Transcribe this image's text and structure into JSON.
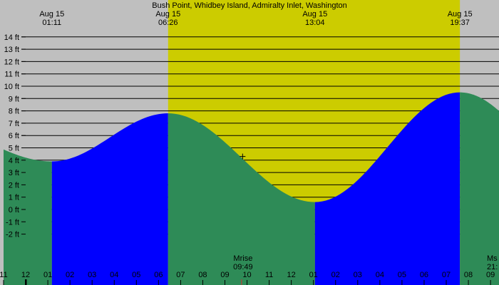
{
  "chart_data": {
    "type": "area",
    "title": "Bush Point, Whidbey Island, Admiralty Inlet, Washington",
    "ylim": [
      -3,
      15
    ],
    "y_ticks": [
      -2,
      -1,
      0,
      1,
      2,
      3,
      4,
      5,
      6,
      7,
      8,
      9,
      10,
      11,
      12,
      13,
      14
    ],
    "y_tick_labels": [
      "-2 ft",
      "-1 ft",
      "0 ft",
      "1 ft",
      "2 ft",
      "3 ft",
      "4 ft",
      "5 ft",
      "6 ft",
      "7 ft",
      "8 ft",
      "9 ft",
      "10 ft",
      "11 ft",
      "12 ft",
      "13 ft",
      "14 ft"
    ],
    "xlim": [
      23.0,
      45.45
    ],
    "x_ticks": [
      23,
      24,
      25,
      26,
      27,
      28,
      29,
      30,
      31,
      32,
      33,
      34,
      35,
      36,
      37,
      38,
      39,
      40,
      41,
      42,
      43,
      44,
      45
    ],
    "x_tick_labels": [
      "11",
      "12",
      "01",
      "02",
      "03",
      "04",
      "05",
      "06",
      "07",
      "08",
      "09",
      "10",
      "11",
      "12",
      "01",
      "02",
      "03",
      "04",
      "05",
      "06",
      "07",
      "08",
      "09"
    ],
    "daylight": {
      "sunrise": 30.433,
      "sunset": 43.617
    },
    "tide_events": [
      {
        "time": 25.183,
        "date": "Aug 15",
        "time_label": "01:11",
        "height": 3.9
      },
      {
        "time": 30.433,
        "date": "Aug 15",
        "time_label": "06:26",
        "height": 7.8
      },
      {
        "time": 37.067,
        "date": "Aug 15",
        "time_label": "13:04",
        "height": 0.6
      },
      {
        "time": 43.617,
        "date": "Aug 15",
        "time_label": "19:37",
        "height": 9.5
      }
    ],
    "boundary_heights": {
      "start": 5.0,
      "end": 8.3
    },
    "current_marker": {
      "time": 33.8,
      "height": 4.3
    },
    "moon_events": [
      {
        "label": "Mrise",
        "time_label": "09:49",
        "time": 33.817
      },
      {
        "label": "Ms",
        "time_label": "21:",
        "time": 45.2
      }
    ],
    "colors": {
      "background": "#bfbfbf",
      "daylight": "#cccc00",
      "rising": "#0000ff",
      "falling": "#2e8b57",
      "gridline": "#000000"
    }
  }
}
